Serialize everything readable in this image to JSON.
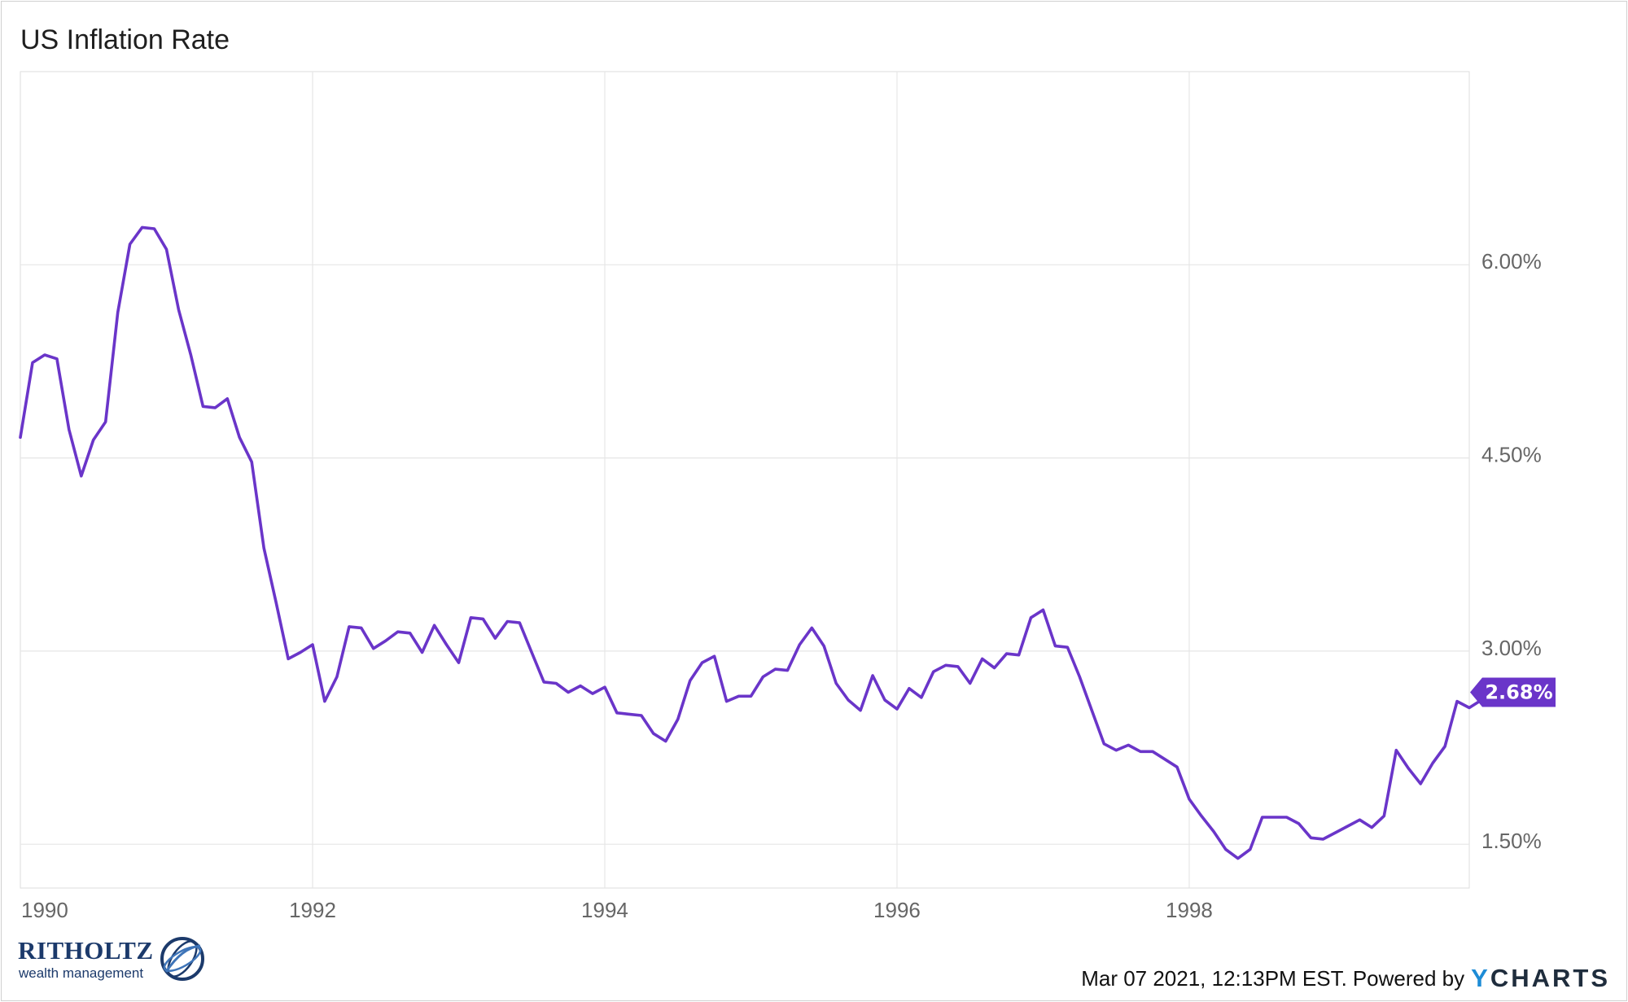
{
  "title": "US Inflation Rate",
  "footer": {
    "timestamp": "Mar 07 2021, 12:13PM EST.",
    "powered_by": "Powered by",
    "brand_y": "Y",
    "brand_rest": "CHARTS"
  },
  "logo": {
    "name": "RITHOLTZ",
    "tagline": "wealth management"
  },
  "chart_data": {
    "type": "line",
    "title": "US Inflation Rate",
    "xlabel": "",
    "ylabel": "",
    "x_ticks": [
      "1990",
      "1992",
      "1994",
      "1996",
      "1998"
    ],
    "y_ticks": [
      "1.50%",
      "3.00%",
      "4.50%",
      "6.00%"
    ],
    "ylim": [
      1.16,
      7.5
    ],
    "xlim": [
      "1990-01",
      "1999-12"
    ],
    "grid": true,
    "last_value_label": "2.68%",
    "colors": {
      "line": "#6a35c9",
      "grid": "#e6e6e6",
      "badge": "#6a35c9"
    },
    "series": [
      {
        "start": "1990-01",
        "frequency": "monthly",
        "values": [
          4.66,
          5.24,
          5.3,
          5.27,
          4.72,
          4.36,
          4.64,
          4.78,
          5.63,
          6.16,
          6.29,
          6.28,
          6.12,
          5.65,
          5.3,
          4.9,
          4.89,
          4.96,
          4.66,
          4.47,
          3.8,
          3.38,
          2.94,
          2.99,
          3.05,
          2.61,
          2.8,
          3.19,
          3.18,
          3.02,
          3.08,
          3.15,
          3.14,
          2.99,
          3.2,
          3.05,
          2.91,
          3.26,
          3.25,
          3.1,
          3.23,
          3.22,
          2.99,
          2.76,
          2.75,
          2.68,
          2.73,
          2.67,
          2.72,
          2.52,
          2.51,
          2.5,
          2.36,
          2.3,
          2.47,
          2.77,
          2.91,
          2.96,
          2.61,
          2.65,
          2.65,
          2.8,
          2.86,
          2.85,
          3.05,
          3.18,
          3.04,
          2.75,
          2.62,
          2.54,
          2.81,
          2.62,
          2.55,
          2.71,
          2.64,
          2.84,
          2.89,
          2.88,
          2.75,
          2.94,
          2.87,
          2.98,
          2.97,
          3.26,
          3.32,
          3.04,
          3.03,
          2.8,
          2.54,
          2.28,
          2.23,
          2.27,
          2.22,
          2.22,
          2.16,
          2.1,
          1.85,
          1.72,
          1.6,
          1.46,
          1.39,
          1.46,
          1.71,
          1.71,
          1.71,
          1.66,
          1.55,
          1.54,
          1.59,
          1.64,
          1.69,
          1.63,
          1.72,
          2.23,
          2.09,
          1.97,
          2.13,
          2.26,
          2.61,
          2.56,
          2.62,
          2.68
        ]
      }
    ]
  }
}
